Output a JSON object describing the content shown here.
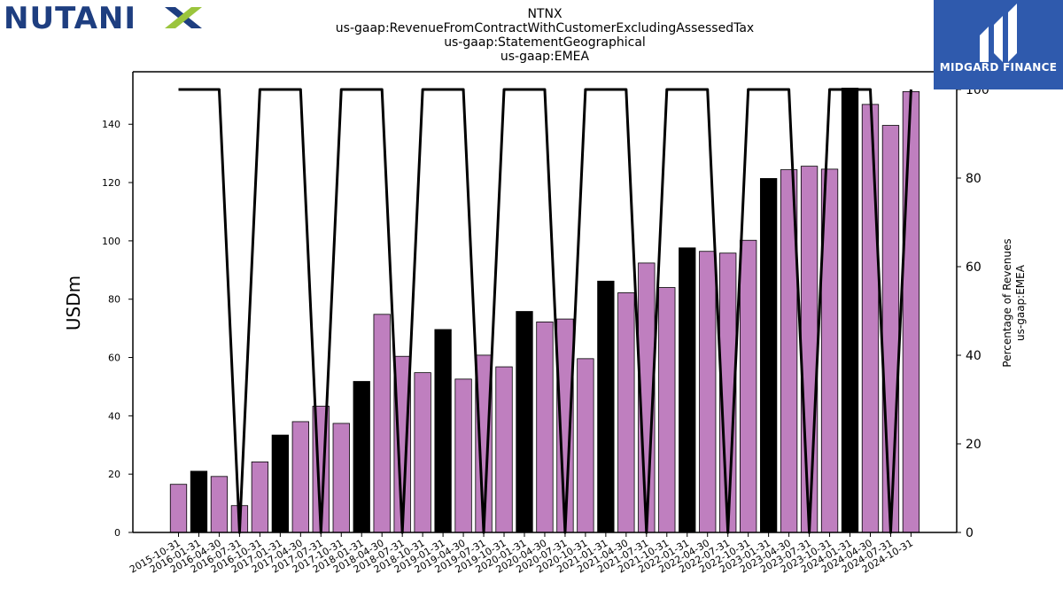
{
  "header": {
    "title_lines": [
      "NTNX",
      "us-gaap:RevenueFromContractWithCustomerExcludingAssessedTax",
      "us-gaap:StatementGeographical",
      "us-gaap:EMEA"
    ]
  },
  "logos": {
    "left_text": "NUTANIX",
    "left_color": "#1e3e80",
    "left_accent": "#9bc53d",
    "right_text": "MIDGARD FINANCE",
    "right_color": "#2f5aad"
  },
  "chart_data": {
    "type": "bar",
    "ylabel": "USDm",
    "y2label": [
      "Percentage of Revenues",
      "us-gaap:EMEA"
    ],
    "ylim": [
      0,
      158
    ],
    "y2lim": [
      0,
      104
    ],
    "yticks": [
      0,
      20,
      40,
      60,
      80,
      100,
      120,
      140
    ],
    "y2ticks": [
      0,
      20,
      40,
      60,
      80,
      100
    ],
    "bar_colors": {
      "annual": "#000000",
      "quarter": "#bf7fbf"
    },
    "line_color": "#000000",
    "categories": [
      "2015-10-31",
      "2016-01-31",
      "2016-04-30",
      "2016-07-31",
      "2016-10-31",
      "2017-01-31",
      "2017-04-30",
      "2017-07-31",
      "2017-10-31",
      "2018-01-31",
      "2018-04-30",
      "2018-07-31",
      "2018-10-31",
      "2019-01-31",
      "2019-04-30",
      "2019-07-31",
      "2019-10-31",
      "2020-01-31",
      "2020-04-30",
      "2020-07-31",
      "2020-10-31",
      "2021-01-31",
      "2021-04-30",
      "2021-07-31",
      "2021-10-31",
      "2022-01-31",
      "2022-04-30",
      "2022-07-31",
      "2022-10-31",
      "2023-01-31",
      "2023-04-30",
      "2023-07-31",
      "2023-10-31",
      "2024-01-31",
      "2024-04-30",
      "2024-07-31",
      "2024-10-31"
    ],
    "values": [
      16.5,
      21,
      19.2,
      9.2,
      24.2,
      33.4,
      38,
      43.3,
      37.4,
      51.8,
      74.8,
      60.4,
      54.8,
      69.6,
      52.6,
      60.8,
      56.8,
      75.8,
      72.2,
      73.2,
      59.6,
      86.2,
      82.2,
      92.4,
      84,
      97.6,
      96.4,
      95.8,
      100.2,
      121.4,
      124.4,
      125.6,
      124.6,
      152.4,
      146.8,
      139.6,
      151.2
    ],
    "annual_flags": [
      0,
      1,
      0,
      0,
      0,
      1,
      0,
      0,
      0,
      1,
      0,
      0,
      0,
      1,
      0,
      0,
      0,
      1,
      0,
      0,
      0,
      1,
      0,
      0,
      0,
      1,
      0,
      0,
      0,
      1,
      0,
      0,
      0,
      1,
      0,
      0,
      0
    ],
    "percent_line": [
      100,
      100,
      100,
      0,
      100,
      100,
      100,
      0,
      100,
      100,
      100,
      0,
      100,
      100,
      100,
      0,
      100,
      100,
      100,
      0,
      100,
      100,
      100,
      0,
      100,
      100,
      100,
      0,
      100,
      100,
      100,
      0,
      100,
      100,
      100,
      0,
      100
    ]
  }
}
